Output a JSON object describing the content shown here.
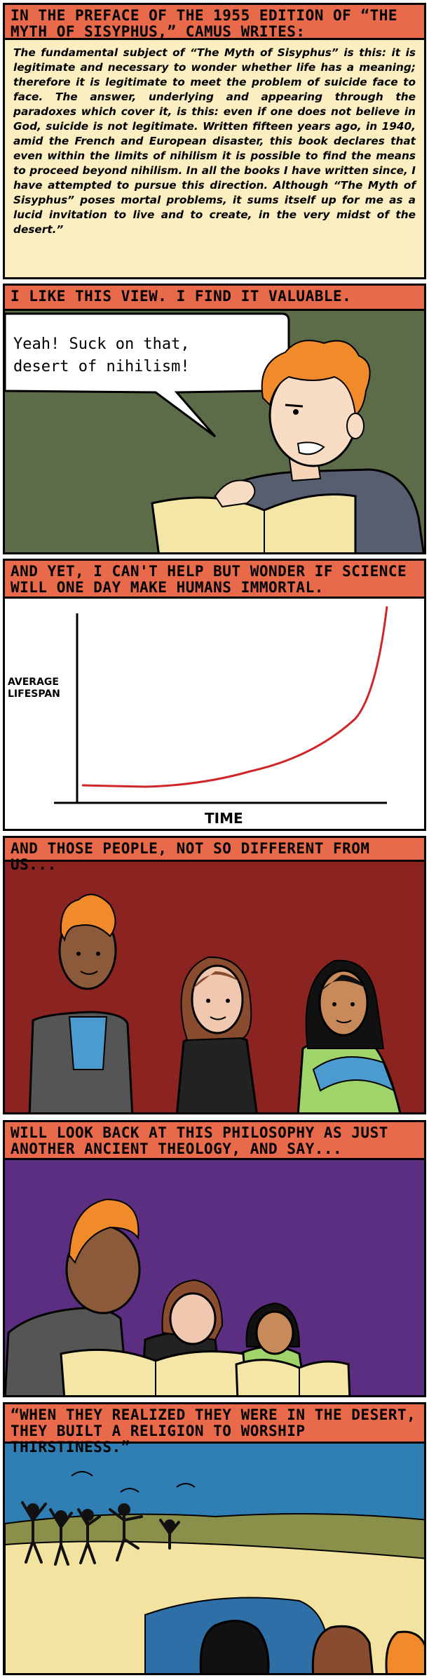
{
  "panels": [
    {
      "caption": "In the preface of the 1955 edition of “The Myth of Sisyphus,” Camus writes:",
      "quote": "The fundamental subject of “The Myth of Sisyphus” is this: it is legitimate and necessary to wonder whether life has a meaning; therefore it is legitimate to meet the problem of suicide face to face. The answer, underlying and appearing through the paradoxes which cover it, is this: even if one does not believe in God, suicide is not legitimate. Written fifteen years ago, in 1940, amid the French and European disaster, this book declares that even within the limits of nihilism it is possible to find the means to proceed beyond nihilism. In all the books I have written since, I have attempted to pursue this direction. Although “The Myth of Sisyphus” poses mortal problems, it sums itself up for me as a lucid invitation to live and to create, in the very midst of the desert.”"
    },
    {
      "caption": "I like this view. I find it valuable.",
      "speech_line1": "Yeah!  Suck on that,",
      "speech_line2": "desert of nihilism!"
    },
    {
      "caption": "And yet, I can't help but wonder if science will one day make humans immortal."
    },
    {
      "caption": "And those people, not so different from us..."
    },
    {
      "caption": "Will look back at this philosophy as just another ancient theology, and say..."
    },
    {
      "caption": "“When they realized they were in the desert, they built a religion to worship thirstiness.”"
    }
  ],
  "colors": {
    "caption_bg": "#e86a4a",
    "quote_bg": "#fbeec0",
    "panel2_bg": "#5c6b48",
    "panel4_bg": "#8b2320",
    "panel5_bg": "#5b2e82",
    "panel6_sky": "#2f7fb5",
    "curve": "#d0262a"
  },
  "chart_data": {
    "type": "line",
    "ylabel": "Average Lifespan",
    "xlabel": "Time",
    "trend": "flat then rising sharply"
  }
}
